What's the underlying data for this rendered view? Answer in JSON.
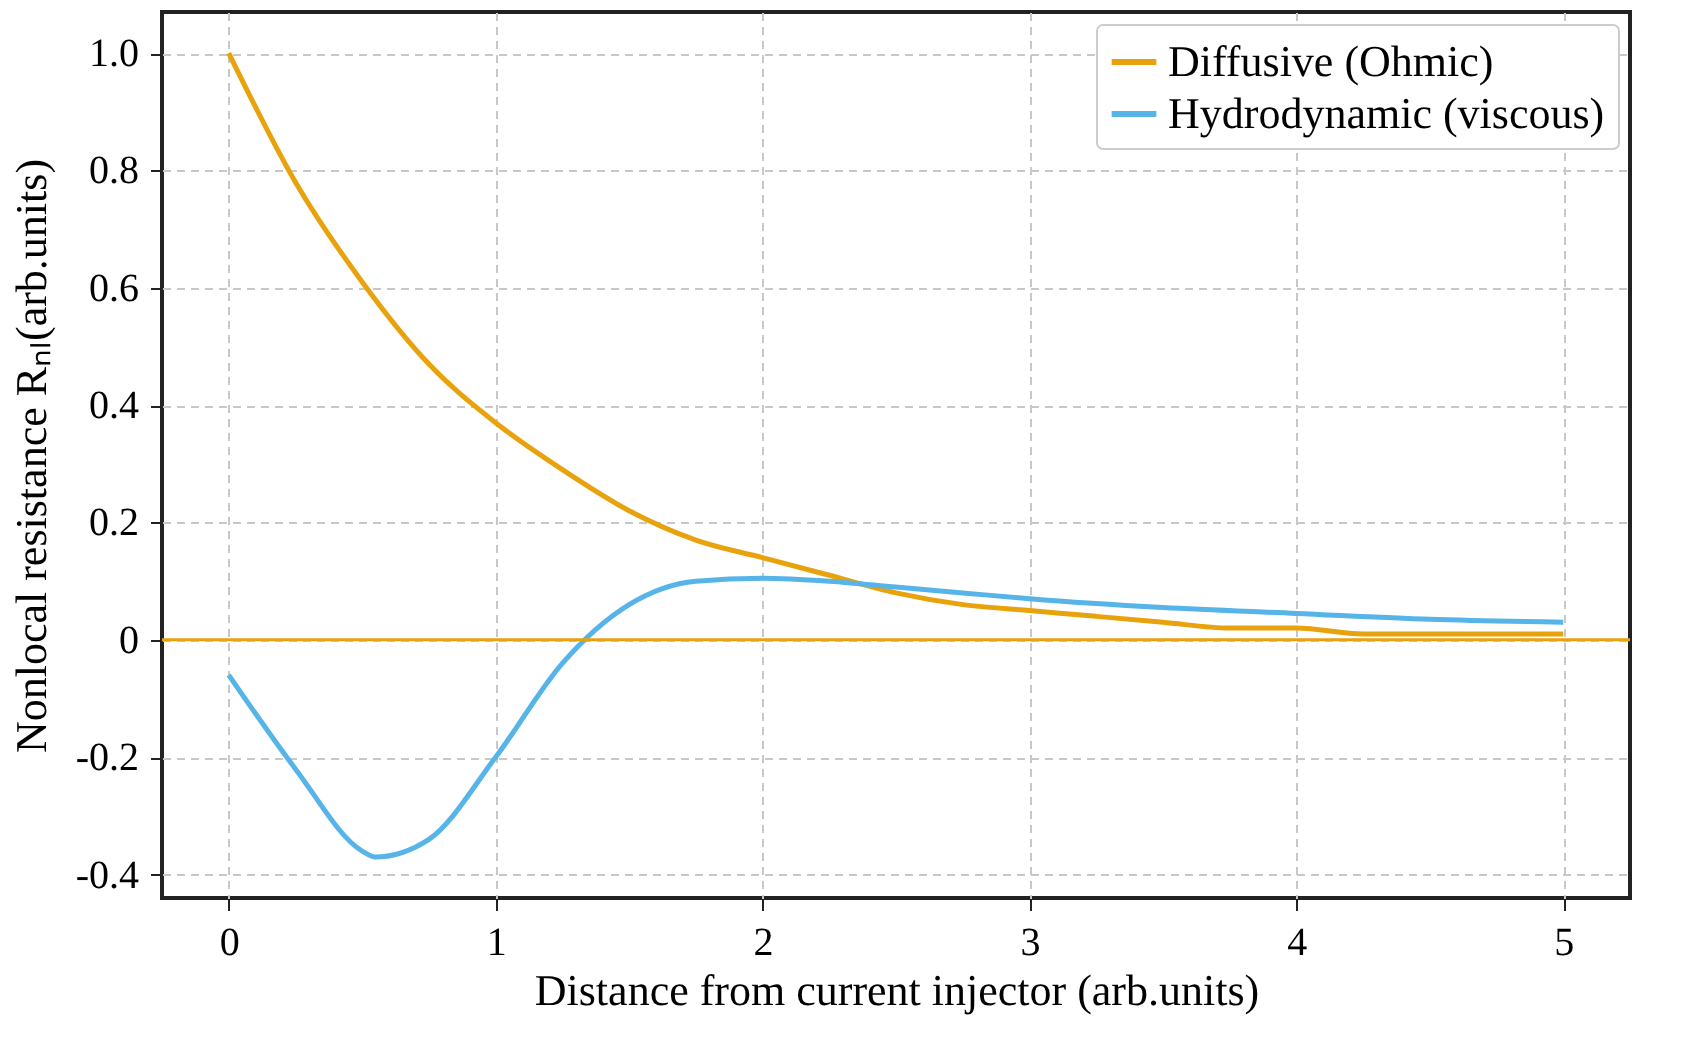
{
  "chart_data": {
    "type": "line",
    "xlabel": "Distance from current injector (arb.units)",
    "ylabel": "Nonlocal resistance Rₙₗ(arb.units)",
    "xlim": [
      -0.25,
      5.25
    ],
    "ylim": [
      -0.44,
      1.07
    ],
    "xticks": [
      0,
      1,
      2,
      3,
      4,
      5
    ],
    "yticks": [
      -0.4,
      -0.2,
      0,
      0.2,
      0.4,
      0.6,
      0.8,
      {
        "value": 1,
        "label": "1.0"
      }
    ],
    "grid": true,
    "legend": "top right",
    "line_style": "solid",
    "ref_lines": [
      {
        "axis": "y",
        "value": 0,
        "color": "#e8a20c"
      }
    ],
    "series": [
      {
        "name": "Diffusive (Ohmic)",
        "color": "#e8a20c",
        "x": [
          0,
          0.25,
          0.5,
          0.75,
          1,
          1.25,
          1.5,
          1.75,
          2,
          2.25,
          2.5,
          2.75,
          3,
          3.25,
          3.5,
          3.75,
          4,
          4.25,
          4.5,
          4.75,
          5
        ],
        "values": [
          1,
          0.78,
          0.61,
          0.47,
          0.37,
          0.29,
          0.22,
          0.17,
          0.14,
          0.11,
          0.08,
          0.06,
          0.05,
          0.04,
          0.03,
          0.02,
          0.02,
          0.01,
          0.01,
          0.01,
          0.01
        ]
      },
      {
        "name": "Hydrodynamic (viscous)",
        "color": "#56b4e9",
        "x": [
          0,
          0.25,
          0.5,
          0.55,
          0.75,
          1,
          1.25,
          1.5,
          1.75,
          2,
          2.25,
          2.5,
          2.75,
          3,
          3.5,
          4,
          4.5,
          5
        ],
        "values": [
          -0.06,
          -0.22,
          -0.36,
          -0.37,
          -0.34,
          -0.2,
          -0.04,
          0.06,
          0.1,
          0.105,
          0.1,
          0.09,
          0.08,
          0.07,
          0.055,
          0.045,
          0.035,
          0.03
        ]
      }
    ]
  }
}
